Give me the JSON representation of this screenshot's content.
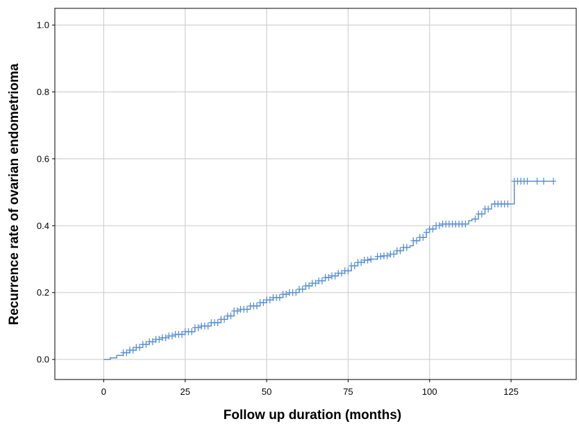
{
  "chart_data": {
    "type": "line",
    "step": true,
    "title": "",
    "xlabel": "Follow up duration (months)",
    "ylabel": "Recurrence rate of ovarian endometrioma",
    "xlim": [
      -15,
      145
    ],
    "ylim": [
      -0.06,
      1.05
    ],
    "xticks": [
      0,
      25,
      50,
      75,
      100,
      125
    ],
    "yticks": [
      0.0,
      0.2,
      0.4,
      0.6,
      0.8,
      1.0
    ],
    "xtick_labels": [
      "0",
      "25",
      "50",
      "75",
      "100",
      "125"
    ],
    "ytick_labels": [
      "0.0",
      "0.2",
      "0.4",
      "0.6",
      "0.8",
      "1.0"
    ],
    "grid": true,
    "line_color": "#5b8fd0",
    "curve": {
      "x": [
        0,
        2,
        4,
        6,
        8,
        10,
        12,
        14,
        16,
        18,
        20,
        22,
        25,
        28,
        30,
        33,
        36,
        38,
        40,
        42,
        45,
        48,
        50,
        52,
        55,
        57,
        60,
        62,
        64,
        66,
        68,
        70,
        72,
        74,
        76,
        78,
        80,
        82,
        84,
        86,
        88,
        90,
        92,
        94,
        95,
        97,
        99,
        100,
        102,
        104,
        110,
        112,
        113,
        115,
        117,
        119,
        121,
        124,
        126,
        138
      ],
      "y": [
        0.0,
        0.005,
        0.012,
        0.02,
        0.028,
        0.036,
        0.045,
        0.053,
        0.06,
        0.065,
        0.07,
        0.075,
        0.083,
        0.095,
        0.1,
        0.11,
        0.12,
        0.13,
        0.145,
        0.15,
        0.16,
        0.17,
        0.178,
        0.185,
        0.195,
        0.2,
        0.21,
        0.22,
        0.228,
        0.235,
        0.245,
        0.25,
        0.258,
        0.265,
        0.28,
        0.29,
        0.297,
        0.3,
        0.308,
        0.31,
        0.315,
        0.325,
        0.335,
        0.34,
        0.355,
        0.365,
        0.38,
        0.39,
        0.4,
        0.405,
        0.405,
        0.415,
        0.42,
        0.435,
        0.45,
        0.465,
        0.465,
        0.465,
        0.533,
        0.533
      ]
    },
    "censored_x": [
      6,
      7,
      8,
      9,
      10,
      11,
      12,
      13,
      14,
      15,
      16,
      17,
      18,
      19,
      20,
      21,
      22,
      23,
      24,
      25,
      26,
      27,
      28,
      29,
      30,
      31,
      32,
      33,
      34,
      35,
      36,
      37,
      38,
      39,
      40,
      41,
      42,
      43,
      44,
      45,
      46,
      47,
      48,
      49,
      50,
      51,
      52,
      53,
      54,
      55,
      56,
      57,
      58,
      59,
      60,
      61,
      62,
      63,
      64,
      65,
      66,
      67,
      68,
      69,
      70,
      71,
      72,
      73,
      74,
      75,
      76,
      77,
      78,
      79,
      80,
      81,
      82,
      84,
      85,
      86,
      87,
      88,
      89,
      90,
      91,
      92,
      93,
      95,
      96,
      97,
      98,
      99,
      100,
      101,
      102,
      103,
      104,
      105,
      106,
      107,
      108,
      109,
      110,
      111,
      114,
      115,
      116,
      117,
      118,
      120,
      121,
      122,
      123,
      124,
      126,
      127,
      128,
      129,
      130,
      133,
      135,
      138
    ]
  }
}
